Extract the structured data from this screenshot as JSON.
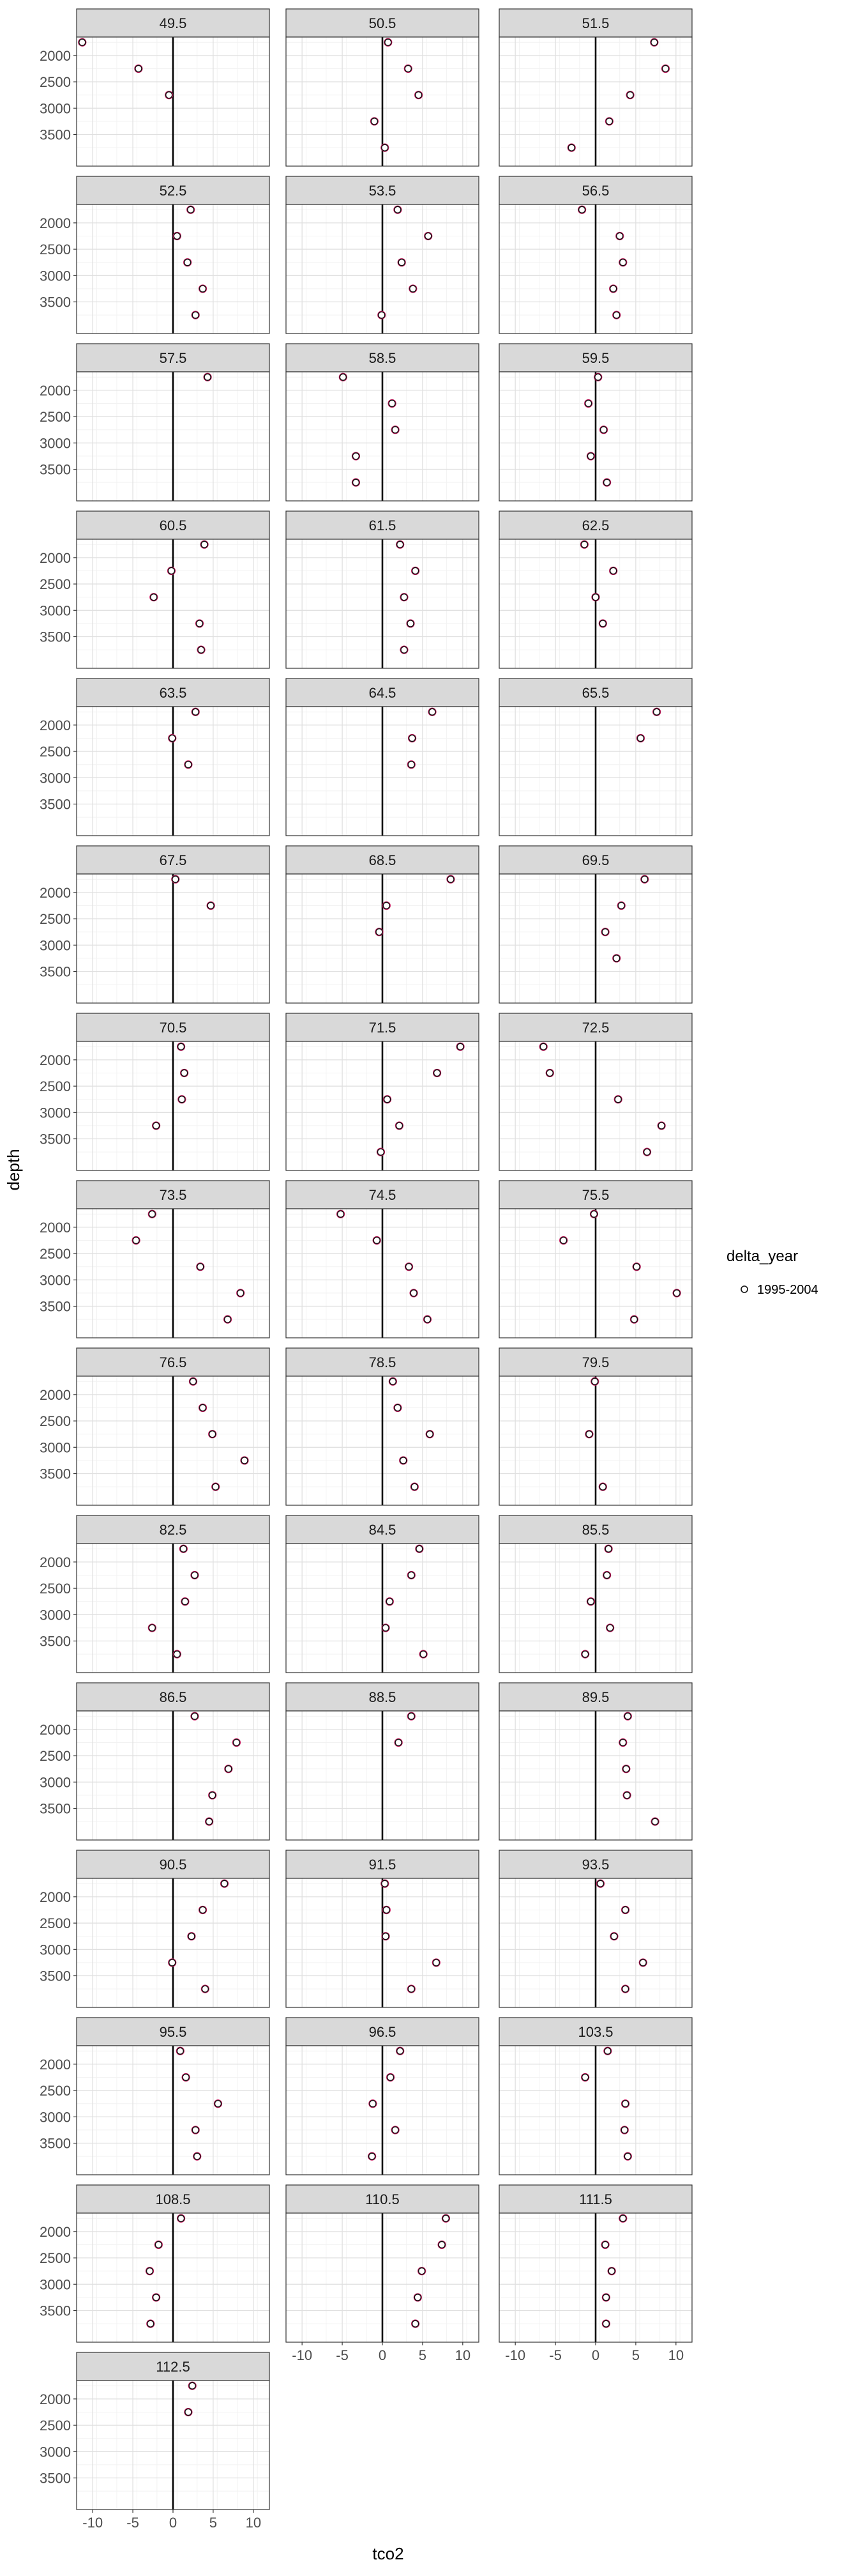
{
  "chart_data": {
    "type": "scatter",
    "facet_by": "latitude bin",
    "xlabel": "tco2",
    "ylabel": "depth",
    "xlim": [
      -12,
      12
    ],
    "ylim": [
      4100,
      1650
    ],
    "y_reversed": true,
    "x_ticks": [
      -10,
      -5,
      0,
      5,
      10
    ],
    "y_ticks": [
      2000,
      2500,
      3000,
      3500
    ],
    "grid": true,
    "reference_line_x": 0,
    "legend": {
      "title": "delta_year",
      "placement": "right",
      "entries": [
        {
          "label": "1995-2004",
          "marker": "open-circle",
          "color": "#c2185b"
        }
      ]
    },
    "point_depths": [
      1750,
      2250,
      2750,
      3250,
      3750
    ],
    "panels": [
      {
        "label": "49.5",
        "points": [
          [
            -11.3,
            1750
          ],
          [
            -4.3,
            2250
          ],
          [
            -0.5,
            2750
          ]
        ]
      },
      {
        "label": "50.5",
        "points": [
          [
            0.7,
            1750
          ],
          [
            3.2,
            2250
          ],
          [
            4.5,
            2750
          ],
          [
            -1.0,
            3250
          ],
          [
            0.3,
            3750
          ]
        ]
      },
      {
        "label": "51.5",
        "points": [
          [
            7.3,
            1750
          ],
          [
            8.7,
            2250
          ],
          [
            4.3,
            2750
          ],
          [
            1.7,
            3250
          ],
          [
            -3.0,
            3750
          ]
        ]
      },
      {
        "label": "52.5",
        "points": [
          [
            2.2,
            1750
          ],
          [
            0.5,
            2250
          ],
          [
            1.8,
            2750
          ],
          [
            3.7,
            3250
          ],
          [
            2.8,
            3750
          ]
        ]
      },
      {
        "label": "53.5",
        "points": [
          [
            1.9,
            1750
          ],
          [
            5.7,
            2250
          ],
          [
            2.4,
            2750
          ],
          [
            3.8,
            3250
          ],
          [
            -0.1,
            3750
          ]
        ]
      },
      {
        "label": "56.5",
        "points": [
          [
            -1.7,
            1750
          ],
          [
            3.0,
            2250
          ],
          [
            3.4,
            2750
          ],
          [
            2.2,
            3250
          ],
          [
            2.6,
            3750
          ]
        ]
      },
      {
        "label": "57.5",
        "points": [
          [
            4.3,
            1750
          ]
        ]
      },
      {
        "label": "58.5",
        "points": [
          [
            -4.9,
            1750
          ],
          [
            1.2,
            2250
          ],
          [
            1.6,
            2750
          ],
          [
            -3.3,
            3250
          ],
          [
            -3.3,
            3750
          ]
        ]
      },
      {
        "label": "59.5",
        "points": [
          [
            0.3,
            1750
          ],
          [
            -0.9,
            2250
          ],
          [
            1.0,
            2750
          ],
          [
            -0.6,
            3250
          ],
          [
            1.4,
            3750
          ]
        ]
      },
      {
        "label": "60.5",
        "points": [
          [
            3.9,
            1750
          ],
          [
            -0.2,
            2250
          ],
          [
            -2.4,
            2750
          ],
          [
            3.3,
            3250
          ],
          [
            3.5,
            3750
          ]
        ]
      },
      {
        "label": "61.5",
        "points": [
          [
            2.2,
            1750
          ],
          [
            4.1,
            2250
          ],
          [
            2.7,
            2750
          ],
          [
            3.5,
            3250
          ],
          [
            2.7,
            3750
          ]
        ]
      },
      {
        "label": "62.5",
        "points": [
          [
            -1.4,
            1750
          ],
          [
            2.2,
            2250
          ],
          [
            0.0,
            2750
          ],
          [
            0.9,
            3250
          ]
        ]
      },
      {
        "label": "63.5",
        "points": [
          [
            2.8,
            1750
          ],
          [
            -0.1,
            2250
          ],
          [
            1.9,
            2750
          ]
        ]
      },
      {
        "label": "64.5",
        "points": [
          [
            6.2,
            1750
          ],
          [
            3.7,
            2250
          ],
          [
            3.6,
            2750
          ]
        ]
      },
      {
        "label": "65.5",
        "points": [
          [
            7.6,
            1750
          ],
          [
            5.6,
            2250
          ]
        ]
      },
      {
        "label": "67.5",
        "points": [
          [
            0.3,
            1750
          ],
          [
            4.7,
            2250
          ]
        ]
      },
      {
        "label": "68.5",
        "points": [
          [
            8.5,
            1750
          ],
          [
            0.5,
            2250
          ],
          [
            -0.4,
            2750
          ]
        ]
      },
      {
        "label": "69.5",
        "points": [
          [
            6.1,
            1750
          ],
          [
            3.2,
            2250
          ],
          [
            1.2,
            2750
          ],
          [
            2.6,
            3250
          ]
        ]
      },
      {
        "label": "70.5",
        "points": [
          [
            1.0,
            1750
          ],
          [
            1.4,
            2250
          ],
          [
            1.1,
            2750
          ],
          [
            -2.1,
            3250
          ]
        ]
      },
      {
        "label": "71.5",
        "points": [
          [
            9.7,
            1750
          ],
          [
            6.8,
            2250
          ],
          [
            0.6,
            2750
          ],
          [
            2.1,
            3250
          ],
          [
            -0.2,
            3750
          ]
        ]
      },
      {
        "label": "72.5",
        "points": [
          [
            -6.5,
            1750
          ],
          [
            -5.7,
            2250
          ],
          [
            2.8,
            2750
          ],
          [
            8.2,
            3250
          ],
          [
            6.4,
            3750
          ]
        ]
      },
      {
        "label": "73.5",
        "points": [
          [
            -2.6,
            1750
          ],
          [
            -4.6,
            2250
          ],
          [
            3.4,
            2750
          ],
          [
            8.4,
            3250
          ],
          [
            6.8,
            3750
          ]
        ]
      },
      {
        "label": "74.5",
        "points": [
          [
            -5.2,
            1750
          ],
          [
            -0.7,
            2250
          ],
          [
            3.3,
            2750
          ],
          [
            3.9,
            3250
          ],
          [
            5.6,
            3750
          ]
        ]
      },
      {
        "label": "75.5",
        "points": [
          [
            -0.2,
            1750
          ],
          [
            -4.0,
            2250
          ],
          [
            5.1,
            2750
          ],
          [
            10.1,
            3250
          ],
          [
            4.8,
            3750
          ]
        ]
      },
      {
        "label": "76.5",
        "points": [
          [
            2.5,
            1750
          ],
          [
            3.7,
            2250
          ],
          [
            4.9,
            2750
          ],
          [
            8.9,
            3250
          ],
          [
            5.3,
            3750
          ]
        ]
      },
      {
        "label": "78.5",
        "points": [
          [
            1.3,
            1750
          ],
          [
            1.9,
            2250
          ],
          [
            5.9,
            2750
          ],
          [
            2.6,
            3250
          ],
          [
            4.0,
            3750
          ]
        ]
      },
      {
        "label": "79.5",
        "points": [
          [
            -0.1,
            1750
          ],
          [
            -0.8,
            2750
          ],
          [
            0.9,
            3750
          ]
        ]
      },
      {
        "label": "82.5",
        "points": [
          [
            1.3,
            1750
          ],
          [
            2.7,
            2250
          ],
          [
            1.5,
            2750
          ],
          [
            -2.6,
            3250
          ],
          [
            0.5,
            3750
          ]
        ]
      },
      {
        "label": "84.5",
        "points": [
          [
            4.6,
            1750
          ],
          [
            3.6,
            2250
          ],
          [
            0.9,
            2750
          ],
          [
            0.4,
            3250
          ],
          [
            5.1,
            3750
          ]
        ]
      },
      {
        "label": "85.5",
        "points": [
          [
            1.6,
            1750
          ],
          [
            1.4,
            2250
          ],
          [
            -0.6,
            2750
          ],
          [
            1.8,
            3250
          ],
          [
            -1.3,
            3750
          ]
        ]
      },
      {
        "label": "86.5",
        "points": [
          [
            2.7,
            1750
          ],
          [
            7.9,
            2250
          ],
          [
            6.9,
            2750
          ],
          [
            4.9,
            3250
          ],
          [
            4.5,
            3750
          ]
        ]
      },
      {
        "label": "88.5",
        "points": [
          [
            3.6,
            1750
          ],
          [
            2.0,
            2250
          ]
        ]
      },
      {
        "label": "89.5",
        "points": [
          [
            4.0,
            1750
          ],
          [
            3.4,
            2250
          ],
          [
            3.8,
            2750
          ],
          [
            3.9,
            3250
          ],
          [
            7.4,
            3750
          ]
        ]
      },
      {
        "label": "90.5",
        "points": [
          [
            6.4,
            1750
          ],
          [
            3.7,
            2250
          ],
          [
            2.3,
            2750
          ],
          [
            -0.1,
            3250
          ],
          [
            4.0,
            3750
          ]
        ]
      },
      {
        "label": "91.5",
        "points": [
          [
            0.3,
            1750
          ],
          [
            0.5,
            2250
          ],
          [
            0.4,
            2750
          ],
          [
            6.7,
            3250
          ],
          [
            3.6,
            3750
          ]
        ]
      },
      {
        "label": "93.5",
        "points": [
          [
            0.6,
            1750
          ],
          [
            3.7,
            2250
          ],
          [
            2.3,
            2750
          ],
          [
            5.9,
            3250
          ],
          [
            3.7,
            3750
          ]
        ]
      },
      {
        "label": "95.5",
        "points": [
          [
            0.9,
            1750
          ],
          [
            1.6,
            2250
          ],
          [
            5.6,
            2750
          ],
          [
            2.8,
            3250
          ],
          [
            3.0,
            3750
          ]
        ]
      },
      {
        "label": "96.5",
        "points": [
          [
            2.2,
            1750
          ],
          [
            1.0,
            2250
          ],
          [
            -1.2,
            2750
          ],
          [
            1.6,
            3250
          ],
          [
            -1.3,
            3750
          ]
        ]
      },
      {
        "label": "103.5",
        "points": [
          [
            1.5,
            1750
          ],
          [
            -1.3,
            2250
          ],
          [
            3.7,
            2750
          ],
          [
            3.6,
            3250
          ],
          [
            4.0,
            3750
          ]
        ]
      },
      {
        "label": "108.5",
        "points": [
          [
            1.0,
            1750
          ],
          [
            -1.8,
            2250
          ],
          [
            -2.9,
            2750
          ],
          [
            -2.1,
            3250
          ],
          [
            -2.8,
            3750
          ]
        ]
      },
      {
        "label": "110.5",
        "points": [
          [
            7.9,
            1750
          ],
          [
            7.4,
            2250
          ],
          [
            4.9,
            2750
          ],
          [
            4.4,
            3250
          ],
          [
            4.1,
            3750
          ]
        ]
      },
      {
        "label": "111.5",
        "points": [
          [
            3.4,
            1750
          ],
          [
            1.2,
            2250
          ],
          [
            2.0,
            2750
          ],
          [
            1.3,
            3250
          ],
          [
            1.3,
            3750
          ]
        ]
      },
      {
        "label": "112.5",
        "points": [
          [
            2.4,
            1750
          ],
          [
            1.9,
            2250
          ]
        ]
      }
    ]
  }
}
